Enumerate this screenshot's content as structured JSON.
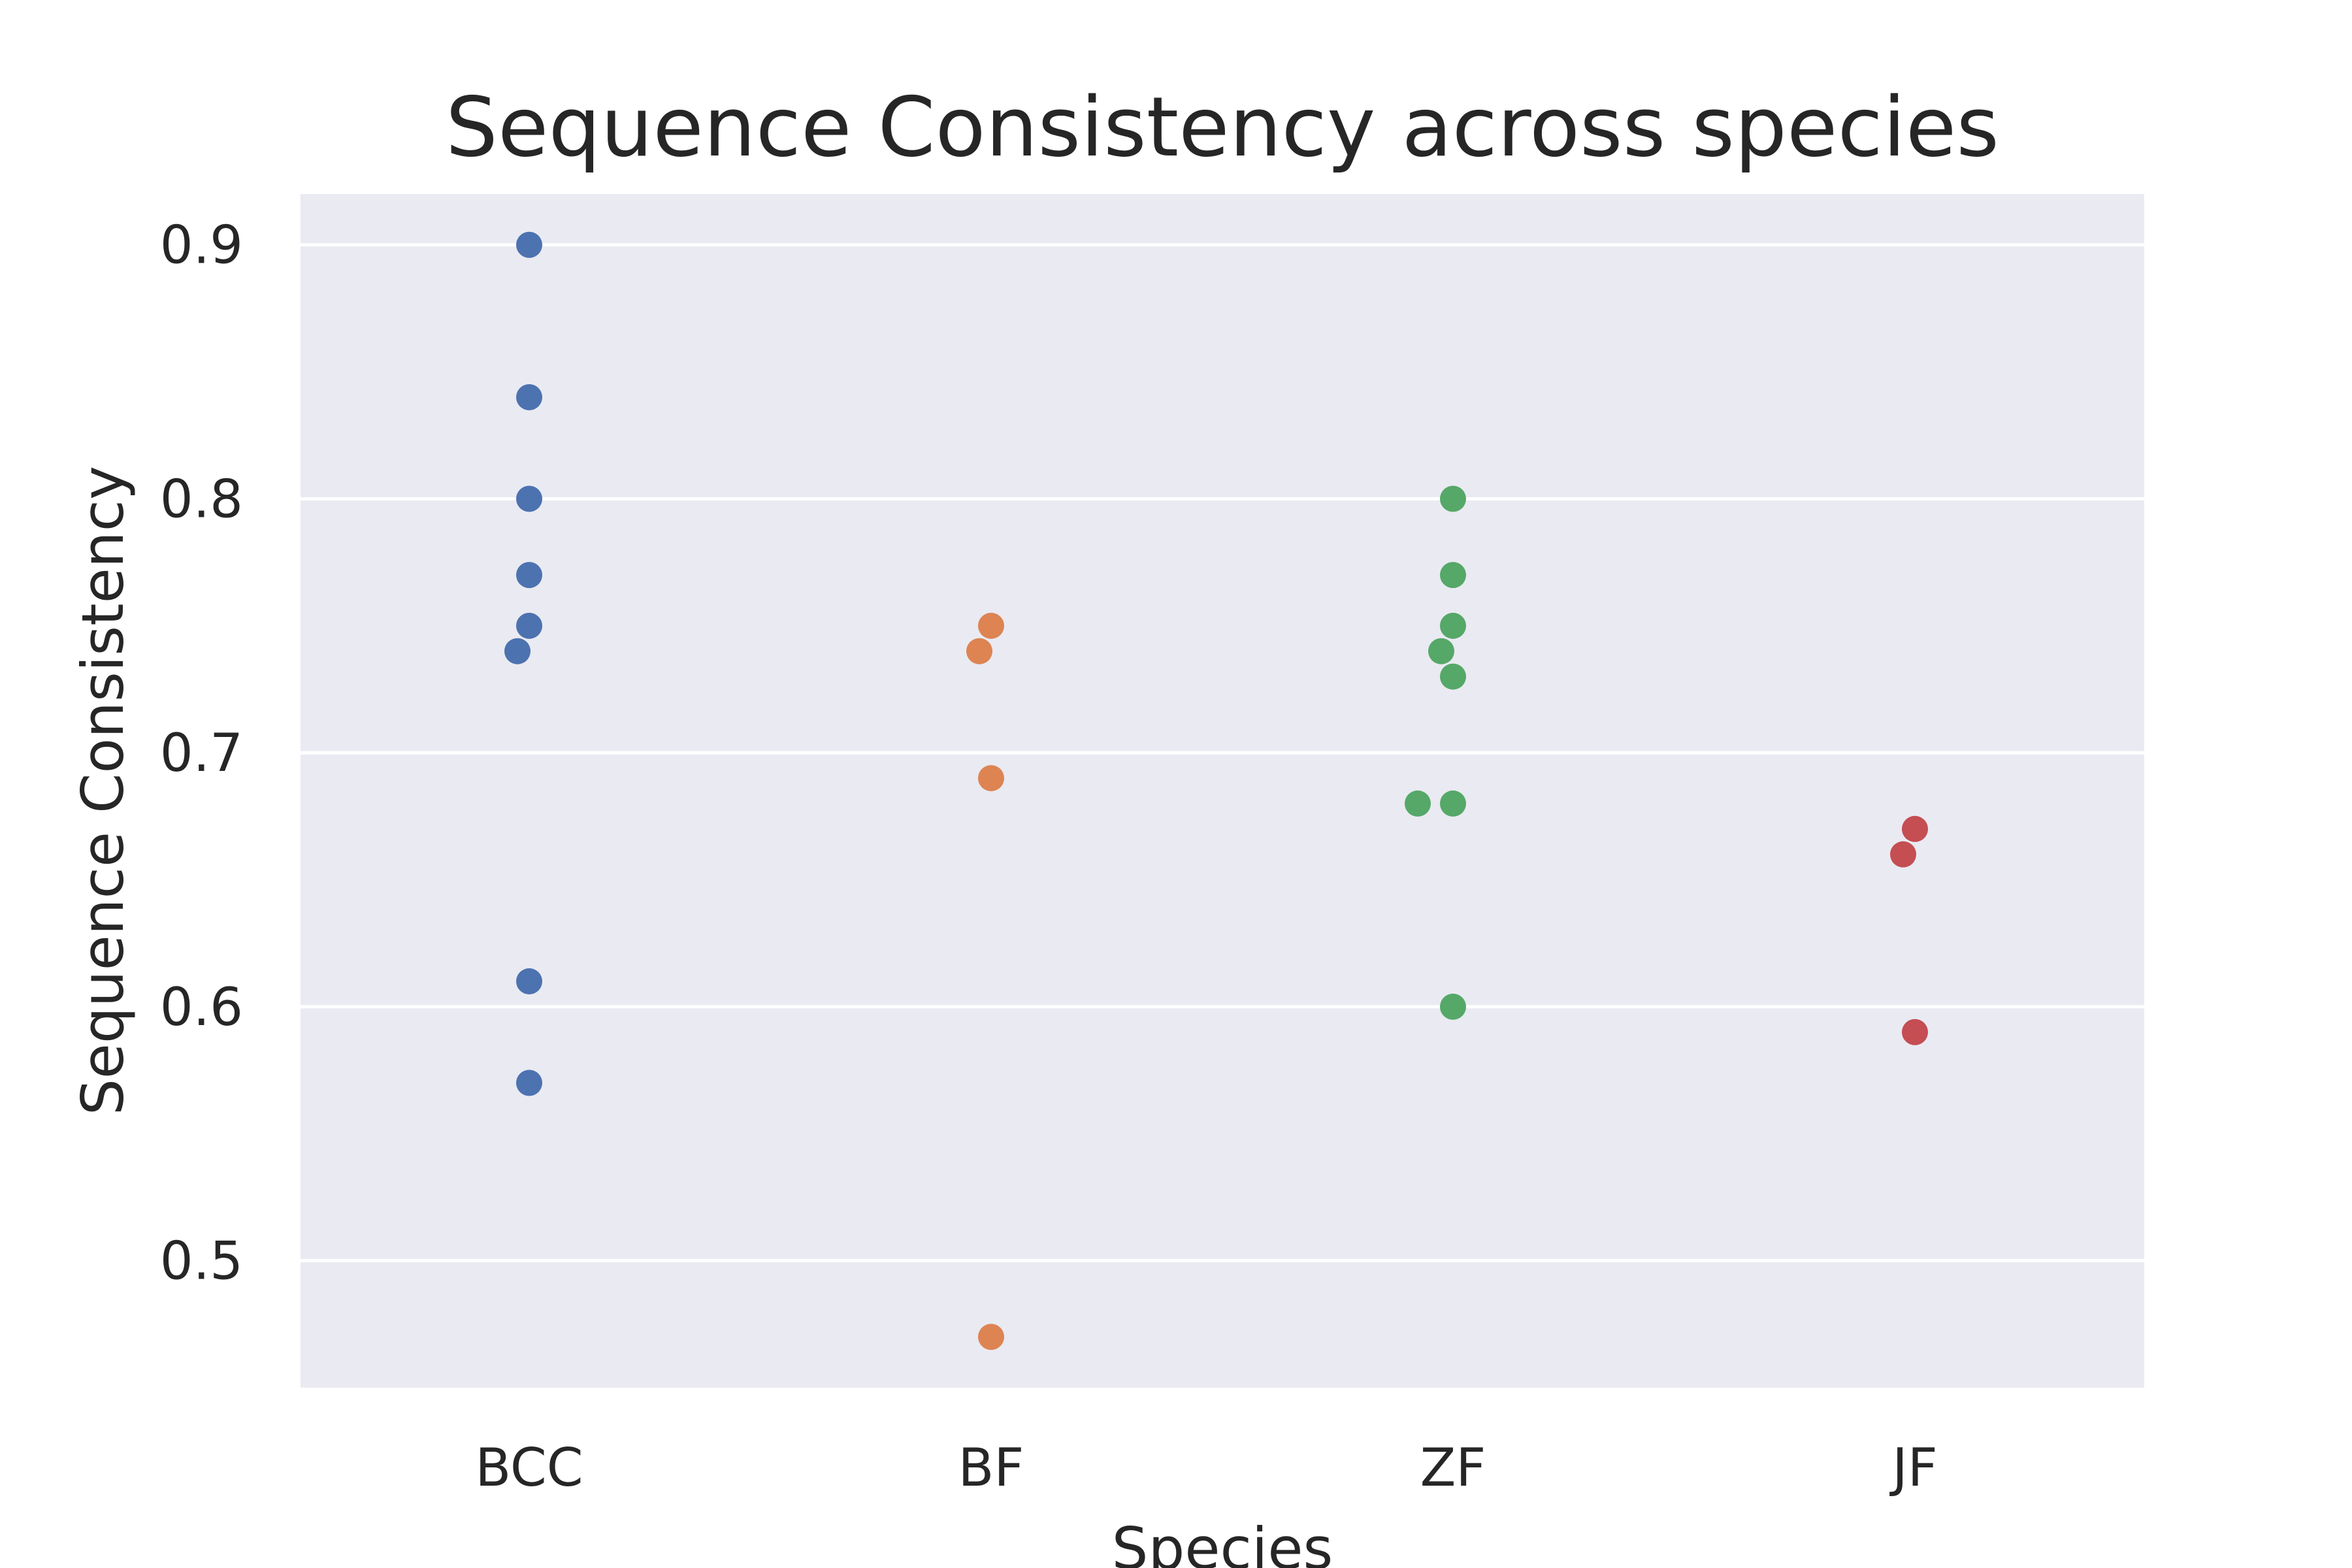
{
  "chart_data": {
    "type": "scatter",
    "title": "Sequence Consistency across species",
    "xlabel": "Species",
    "ylabel": "Sequence Consistency",
    "categories": [
      "BCC",
      "BF",
      "ZF",
      "JF"
    ],
    "ylim": [
      0.45,
      0.92
    ],
    "yticks": [
      "0.5",
      "0.6",
      "0.7",
      "0.8",
      "0.9"
    ],
    "grid": true,
    "background_color": "#EAEAF2",
    "grid_color": "#FFFFFF",
    "series": [
      {
        "category": "BCC",
        "color": "#4C72B0",
        "values": [
          0.9,
          0.84,
          0.8,
          0.77,
          0.75,
          0.74,
          0.61,
          0.57
        ]
      },
      {
        "category": "BF",
        "color": "#DD8452",
        "values": [
          0.75,
          0.74,
          0.69,
          0.47
        ]
      },
      {
        "category": "ZF",
        "color": "#55A868",
        "values": [
          0.8,
          0.77,
          0.75,
          0.74,
          0.73,
          0.68,
          0.68,
          0.6
        ]
      },
      {
        "category": "JF",
        "color": "#C44E52",
        "values": [
          0.67,
          0.66,
          0.59
        ]
      }
    ]
  }
}
